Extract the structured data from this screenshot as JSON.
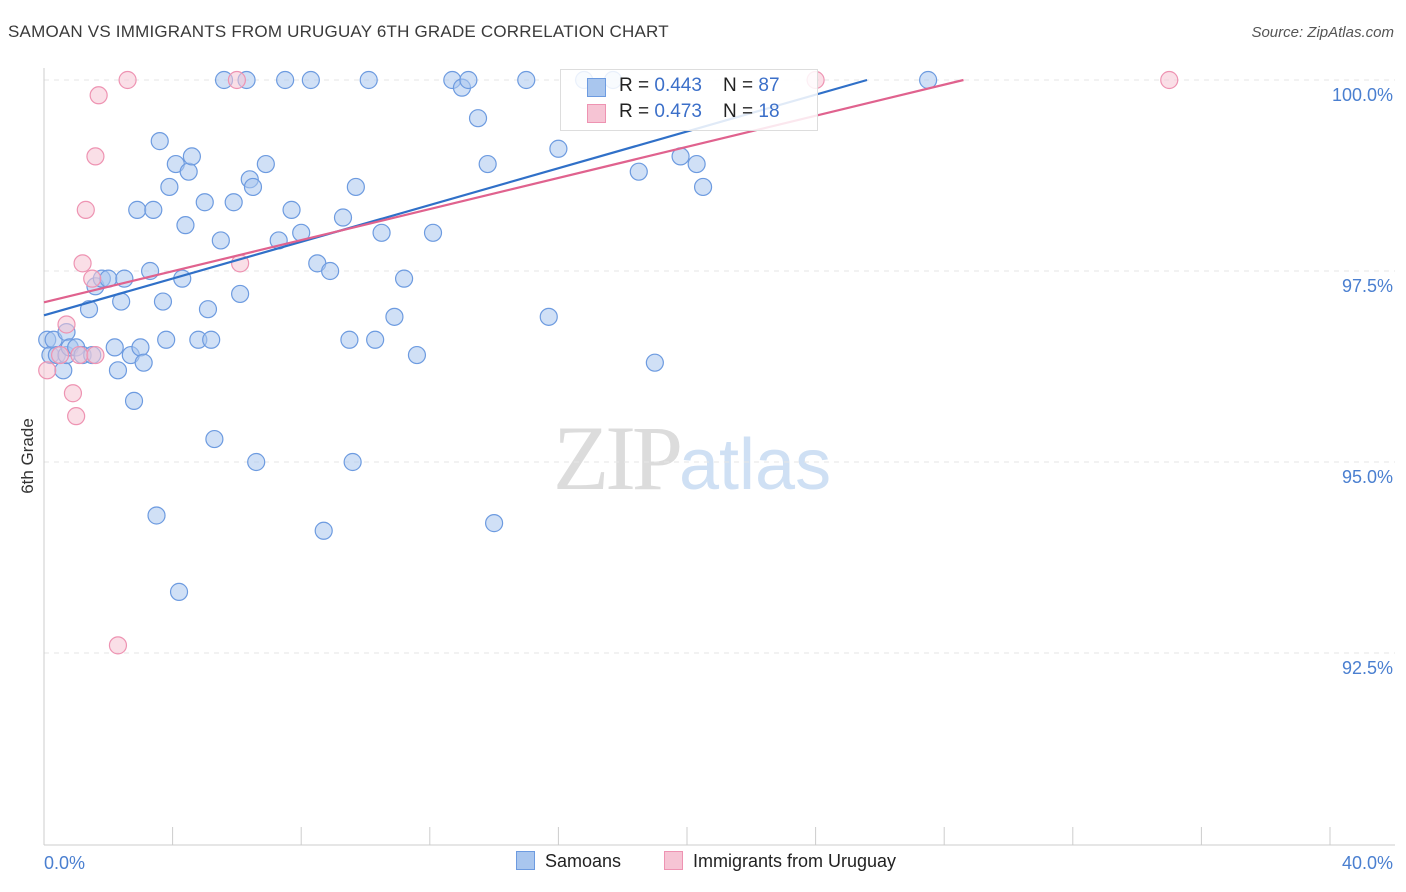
{
  "chart_data": {
    "type": "scatter",
    "title": "SAMOAN VS IMMIGRANTS FROM URUGUAY 6TH GRADE CORRELATION CHART",
    "source": "Source: ZipAtlas.com",
    "xlabel": "",
    "ylabel": "6th Grade",
    "xlim": [
      0.0,
      40.0
    ],
    "ylim": [
      90.0,
      100.2
    ],
    "x_tick_labels": [
      "0.0%",
      "40.0%"
    ],
    "y_ticks": [
      100.0,
      97.5,
      95.0,
      92.5
    ],
    "y_tick_labels": [
      "100.0%",
      "97.5%",
      "95.0%",
      "92.5%"
    ],
    "grid": true,
    "watermark": {
      "zip": "ZIP",
      "atlas": "atlas"
    },
    "legend": {
      "position": "top-center",
      "rows": [
        {
          "r_label": "R = ",
          "r_value": "0.443",
          "n_label": "N = ",
          "n_value": "87"
        },
        {
          "r_label": "R = ",
          "r_value": "0.473",
          "n_label": "N = ",
          "n_value": "18"
        }
      ]
    },
    "series": [
      {
        "name": "Samoans",
        "color": "#6d9be0",
        "fill": "#a9c6ee",
        "line_color": "#3070c8",
        "trend": {
          "x": [
            0.0,
            25.6
          ],
          "y": [
            96.92,
            100.0
          ]
        },
        "points": [
          [
            0.1,
            96.6
          ],
          [
            0.2,
            96.4
          ],
          [
            0.3,
            96.6
          ],
          [
            0.4,
            96.4
          ],
          [
            0.6,
            96.2
          ],
          [
            0.7,
            96.7
          ],
          [
            0.7,
            96.4
          ],
          [
            0.8,
            96.5
          ],
          [
            1.0,
            96.5
          ],
          [
            1.2,
            96.4
          ],
          [
            1.4,
            97.0
          ],
          [
            1.5,
            96.4
          ],
          [
            1.6,
            97.3
          ],
          [
            1.8,
            97.4
          ],
          [
            2.0,
            97.4
          ],
          [
            2.2,
            96.5
          ],
          [
            2.3,
            96.2
          ],
          [
            2.4,
            97.1
          ],
          [
            2.5,
            97.4
          ],
          [
            2.7,
            96.4
          ],
          [
            2.8,
            95.8
          ],
          [
            2.9,
            98.3
          ],
          [
            3.0,
            96.5
          ],
          [
            3.1,
            96.3
          ],
          [
            3.3,
            97.5
          ],
          [
            3.4,
            98.3
          ],
          [
            3.5,
            94.3
          ],
          [
            3.6,
            99.2
          ],
          [
            3.7,
            97.1
          ],
          [
            3.8,
            96.6
          ],
          [
            3.9,
            98.6
          ],
          [
            4.1,
            98.9
          ],
          [
            4.2,
            93.3
          ],
          [
            4.3,
            97.4
          ],
          [
            4.4,
            98.1
          ],
          [
            4.5,
            98.8
          ],
          [
            4.6,
            99.0
          ],
          [
            4.8,
            96.6
          ],
          [
            5.0,
            98.4
          ],
          [
            5.1,
            97.0
          ],
          [
            5.2,
            96.6
          ],
          [
            5.3,
            95.3
          ],
          [
            5.5,
            97.9
          ],
          [
            5.6,
            100.0
          ],
          [
            5.9,
            98.4
          ],
          [
            6.1,
            97.2
          ],
          [
            6.3,
            100.0
          ],
          [
            6.4,
            98.7
          ],
          [
            6.5,
            98.6
          ],
          [
            6.6,
            95.0
          ],
          [
            6.9,
            98.9
          ],
          [
            7.3,
            97.9
          ],
          [
            7.5,
            100.0
          ],
          [
            7.7,
            98.3
          ],
          [
            8.0,
            98.0
          ],
          [
            8.3,
            100.0
          ],
          [
            8.5,
            97.6
          ],
          [
            8.7,
            94.1
          ],
          [
            8.9,
            97.5
          ],
          [
            9.3,
            98.2
          ],
          [
            9.5,
            96.6
          ],
          [
            9.6,
            95.0
          ],
          [
            9.7,
            98.6
          ],
          [
            10.1,
            100.0
          ],
          [
            10.3,
            96.6
          ],
          [
            10.5,
            98.0
          ],
          [
            10.9,
            96.9
          ],
          [
            11.2,
            97.4
          ],
          [
            11.6,
            96.4
          ],
          [
            12.1,
            98.0
          ],
          [
            12.7,
            100.0
          ],
          [
            13.0,
            99.9
          ],
          [
            13.2,
            100.0
          ],
          [
            13.5,
            99.5
          ],
          [
            13.8,
            98.9
          ],
          [
            14.0,
            94.2
          ],
          [
            15.0,
            100.0
          ],
          [
            15.7,
            96.9
          ],
          [
            16.0,
            99.1
          ],
          [
            16.8,
            100.0
          ],
          [
            17.7,
            100.0
          ],
          [
            18.5,
            98.8
          ],
          [
            19.0,
            96.3
          ],
          [
            19.8,
            99.0
          ],
          [
            20.3,
            98.9
          ],
          [
            20.5,
            98.6
          ],
          [
            27.5,
            100.0
          ]
        ]
      },
      {
        "name": "Immigrants from Uruguay",
        "color": "#ee93b2",
        "fill": "#f6c4d4",
        "line_color": "#e0628e",
        "trend": {
          "x": [
            0.0,
            28.6
          ],
          "y": [
            97.09,
            100.0
          ]
        },
        "points": [
          [
            0.1,
            96.2
          ],
          [
            0.5,
            96.4
          ],
          [
            0.7,
            96.8
          ],
          [
            0.9,
            95.9
          ],
          [
            1.0,
            95.6
          ],
          [
            1.1,
            96.4
          ],
          [
            1.2,
            97.6
          ],
          [
            1.3,
            98.3
          ],
          [
            1.5,
            97.4
          ],
          [
            1.6,
            96.4
          ],
          [
            1.6,
            99.0
          ],
          [
            1.7,
            99.8
          ],
          [
            2.3,
            92.6
          ],
          [
            2.6,
            100.0
          ],
          [
            6.0,
            100.0
          ],
          [
            6.1,
            97.6
          ],
          [
            24.0,
            100.0
          ],
          [
            35.0,
            100.0
          ]
        ]
      }
    ]
  }
}
